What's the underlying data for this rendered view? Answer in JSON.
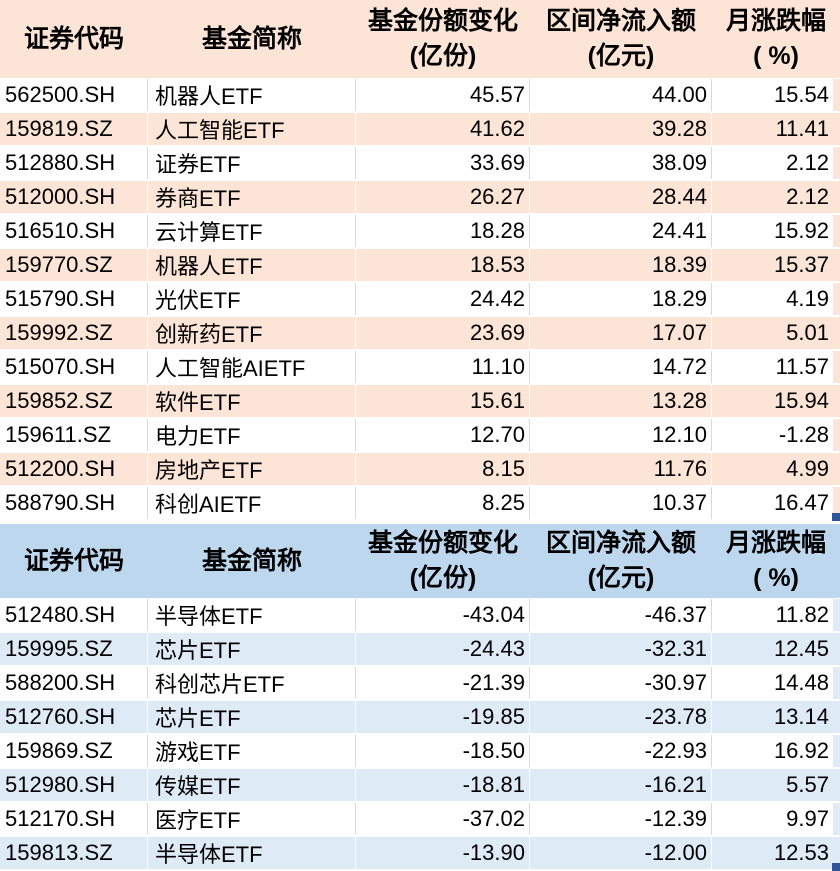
{
  "colors": {
    "orange_fill": "#FCE4D6",
    "blue_header_fill": "#BDD7EE",
    "blue_stripe_fill": "#DEEAF6",
    "gridline": "#D9D9D9",
    "selection_handle": "#2F5597",
    "text": "#000000",
    "row_background": "#FFFFFF"
  },
  "tables": [
    {
      "theme": "orange",
      "columns": [
        {
          "label": "证券代码",
          "unit": ""
        },
        {
          "label": "基金简称",
          "unit": ""
        },
        {
          "label": "基金份额变化",
          "unit": "(亿份)"
        },
        {
          "label": "区间净流入额",
          "unit": "(亿元)"
        },
        {
          "label": "月涨跌幅",
          "unit": "( %)"
        }
      ],
      "rows": [
        {
          "code": "562500.SH",
          "name": "机器人ETF",
          "share_change": "45.57",
          "net_inflow": "44.00",
          "monthly_change": "15.54"
        },
        {
          "code": "159819.SZ",
          "name": "人工智能ETF",
          "share_change": "41.62",
          "net_inflow": "39.28",
          "monthly_change": "11.41"
        },
        {
          "code": "512880.SH",
          "name": "证券ETF",
          "share_change": "33.69",
          "net_inflow": "38.09",
          "monthly_change": "2.12"
        },
        {
          "code": "512000.SH",
          "name": "券商ETF",
          "share_change": "26.27",
          "net_inflow": "28.44",
          "monthly_change": "2.12"
        },
        {
          "code": "516510.SH",
          "name": "云计算ETF",
          "share_change": "18.28",
          "net_inflow": "24.41",
          "monthly_change": "15.92"
        },
        {
          "code": "159770.SZ",
          "name": "机器人ETF",
          "share_change": "18.53",
          "net_inflow": "18.39",
          "monthly_change": "15.37"
        },
        {
          "code": "515790.SH",
          "name": "光伏ETF",
          "share_change": "24.42",
          "net_inflow": "18.29",
          "monthly_change": "4.19"
        },
        {
          "code": "159992.SZ",
          "name": "创新药ETF",
          "share_change": "23.69",
          "net_inflow": "17.07",
          "monthly_change": "5.01"
        },
        {
          "code": "515070.SH",
          "name": "人工智能AIETF",
          "share_change": "11.10",
          "net_inflow": "14.72",
          "monthly_change": "11.57"
        },
        {
          "code": "159852.SZ",
          "name": "软件ETF",
          "share_change": "15.61",
          "net_inflow": "13.28",
          "monthly_change": "15.94"
        },
        {
          "code": "159611.SZ",
          "name": "电力ETF",
          "share_change": "12.70",
          "net_inflow": "12.10",
          "monthly_change": "-1.28"
        },
        {
          "code": "512200.SH",
          "name": "房地产ETF",
          "share_change": "8.15",
          "net_inflow": "11.76",
          "monthly_change": "4.99"
        },
        {
          "code": "588790.SH",
          "name": "科创AIETF",
          "share_change": "8.25",
          "net_inflow": "10.37",
          "monthly_change": "16.47"
        }
      ]
    },
    {
      "theme": "blue",
      "columns": [
        {
          "label": "证券代码",
          "unit": ""
        },
        {
          "label": "基金简称",
          "unit": ""
        },
        {
          "label": "基金份额变化",
          "unit": "(亿份)"
        },
        {
          "label": "区间净流入额",
          "unit": "(亿元)"
        },
        {
          "label": "月涨跌幅",
          "unit": "( %)"
        }
      ],
      "rows": [
        {
          "code": "512480.SH",
          "name": "半导体ETF",
          "share_change": "-43.04",
          "net_inflow": "-46.37",
          "monthly_change": "11.82"
        },
        {
          "code": "159995.SZ",
          "name": "芯片ETF",
          "share_change": "-24.43",
          "net_inflow": "-32.31",
          "monthly_change": "12.45"
        },
        {
          "code": "588200.SH",
          "name": "科创芯片ETF",
          "share_change": "-21.39",
          "net_inflow": "-30.97",
          "monthly_change": "14.48"
        },
        {
          "code": "512760.SH",
          "name": "芯片ETF",
          "share_change": "-19.85",
          "net_inflow": "-23.78",
          "monthly_change": "13.14"
        },
        {
          "code": "159869.SZ",
          "name": "游戏ETF",
          "share_change": "-18.50",
          "net_inflow": "-22.93",
          "monthly_change": "16.92"
        },
        {
          "code": "512980.SH",
          "name": "传媒ETF",
          "share_change": "-18.81",
          "net_inflow": "-16.21",
          "monthly_change": "5.57"
        },
        {
          "code": "512170.SH",
          "name": "医疗ETF",
          "share_change": "-37.02",
          "net_inflow": "-12.39",
          "monthly_change": "9.97"
        },
        {
          "code": "159813.SZ",
          "name": "半导体ETF",
          "share_change": "-13.90",
          "net_inflow": "-12.00",
          "monthly_change": "12.53"
        }
      ]
    }
  ],
  "chart_data": [
    {
      "type": "table",
      "title": "",
      "columns": [
        "证券代码",
        "基金简称",
        "基金份额变化(亿份)",
        "区间净流入额(亿元)",
        "月涨跌幅( %)"
      ],
      "rows": [
        [
          "562500.SH",
          "机器人ETF",
          45.57,
          44.0,
          15.54
        ],
        [
          "159819.SZ",
          "人工智能ETF",
          41.62,
          39.28,
          11.41
        ],
        [
          "512880.SH",
          "证券ETF",
          33.69,
          38.09,
          2.12
        ],
        [
          "512000.SH",
          "券商ETF",
          26.27,
          28.44,
          2.12
        ],
        [
          "516510.SH",
          "云计算ETF",
          18.28,
          24.41,
          15.92
        ],
        [
          "159770.SZ",
          "机器人ETF",
          18.53,
          18.39,
          15.37
        ],
        [
          "515790.SH",
          "光伏ETF",
          24.42,
          18.29,
          4.19
        ],
        [
          "159992.SZ",
          "创新药ETF",
          23.69,
          17.07,
          5.01
        ],
        [
          "515070.SH",
          "人工智能AIETF",
          11.1,
          14.72,
          11.57
        ],
        [
          "159852.SZ",
          "软件ETF",
          15.61,
          13.28,
          15.94
        ],
        [
          "159611.SZ",
          "电力ETF",
          12.7,
          12.1,
          -1.28
        ],
        [
          "512200.SH",
          "房地产ETF",
          8.15,
          11.76,
          4.99
        ],
        [
          "588790.SH",
          "科创AIETF",
          8.25,
          10.37,
          16.47
        ]
      ]
    },
    {
      "type": "table",
      "title": "",
      "columns": [
        "证券代码",
        "基金简称",
        "基金份额变化(亿份)",
        "区间净流入额(亿元)",
        "月涨跌幅( %)"
      ],
      "rows": [
        [
          "512480.SH",
          "半导体ETF",
          -43.04,
          -46.37,
          11.82
        ],
        [
          "159995.SZ",
          "芯片ETF",
          -24.43,
          -32.31,
          12.45
        ],
        [
          "588200.SH",
          "科创芯片ETF",
          -21.39,
          -30.97,
          14.48
        ],
        [
          "512760.SH",
          "芯片ETF",
          -19.85,
          -23.78,
          13.14
        ],
        [
          "159869.SZ",
          "游戏ETF",
          -18.5,
          -22.93,
          16.92
        ],
        [
          "512980.SH",
          "传媒ETF",
          -18.81,
          -16.21,
          5.57
        ],
        [
          "512170.SH",
          "医疗ETF",
          -37.02,
          -12.39,
          9.97
        ],
        [
          "159813.SZ",
          "半导体ETF",
          -13.9,
          -12.0,
          12.53
        ]
      ]
    }
  ]
}
